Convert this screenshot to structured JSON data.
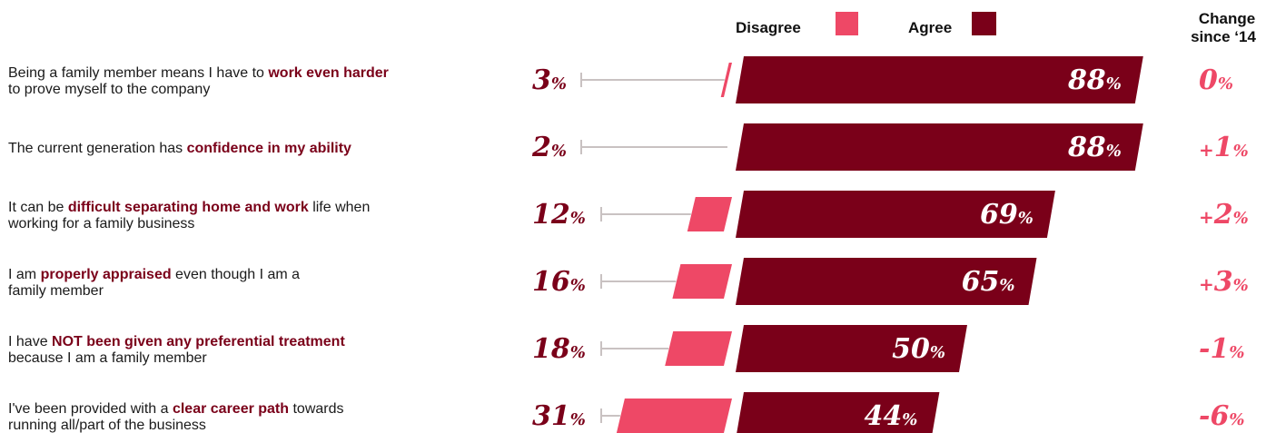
{
  "colors": {
    "agree": "#7a0019",
    "disagree": "#ee4866",
    "connector": "#c9c2c2",
    "text": "#1a1a1a"
  },
  "legend": {
    "disagree": "Disagree",
    "agree": "Agree",
    "change_header": [
      "Change",
      "since ‘14"
    ]
  },
  "chart_data": {
    "type": "bar",
    "series": [
      {
        "name": "Disagree",
        "values": [
          3,
          2,
          12,
          16,
          18,
          31
        ]
      },
      {
        "name": "Agree",
        "values": [
          88,
          88,
          69,
          65,
          50,
          44
        ]
      }
    ],
    "categories": [
      [
        [
          {
            "t": "Being a family member means I have to "
          },
          {
            "t": "work even harder",
            "b": true
          }
        ],
        [
          {
            "t": "to prove myself to the company"
          }
        ]
      ],
      [
        [
          {
            "t": "The current generation has "
          },
          {
            "t": "confidence in my ability",
            "b": true
          }
        ]
      ],
      [
        [
          {
            "t": "It can be "
          },
          {
            "t": "difficult separating home and work",
            "b": true
          },
          {
            "t": " life when"
          }
        ],
        [
          {
            "t": "working for a family business"
          }
        ]
      ],
      [
        [
          {
            "t": "I am "
          },
          {
            "t": "properly appraised",
            "b": true
          },
          {
            "t": " even though I am a"
          }
        ],
        [
          {
            "t": "family member"
          }
        ]
      ],
      [
        [
          {
            "t": "I have "
          },
          {
            "t": "NOT been given any preferential treatment",
            "b": true
          }
        ],
        [
          {
            "t": "because I am a family member"
          }
        ]
      ],
      [
        [
          {
            "t": "I've been provided with a "
          },
          {
            "t": "clear career path",
            "b": true
          },
          {
            "t": " towards"
          }
        ],
        [
          {
            "t": "running all/part of the business"
          }
        ]
      ]
    ],
    "change_since_2014": [
      {
        "sign": "",
        "value": "0"
      },
      {
        "sign": "+",
        "value": "1"
      },
      {
        "sign": "+",
        "value": "2"
      },
      {
        "sign": "+",
        "value": "3"
      },
      {
        "sign": "",
        "value": "-1"
      },
      {
        "sign": "",
        "value": "-6"
      }
    ],
    "percent_symbol": "%"
  }
}
